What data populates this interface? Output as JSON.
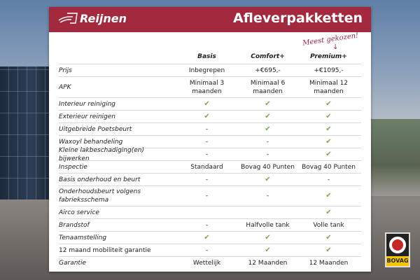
{
  "header": {
    "logo_text": "Reijnen",
    "title": "Afleverpakketten",
    "brand_color": "#a32a3e"
  },
  "note": "Meest gekozen!",
  "columns": [
    "Basis",
    "Comfort+",
    "Premium+"
  ],
  "rows": [
    {
      "label": "Prijs",
      "italic": true,
      "values": [
        "Inbegrepen",
        "+€695,-",
        "+€1095,-"
      ]
    },
    {
      "label": "APK",
      "italic": true,
      "values": [
        "Minimaal 3 maanden",
        "Minimaal 6 maanden",
        "Minimaal 12 maanden"
      ]
    },
    {
      "label": "Interieur reiniging",
      "values": [
        "check",
        "check",
        "check"
      ]
    },
    {
      "label": "Exterieur reinigen",
      "values": [
        "check",
        "check",
        "check"
      ]
    },
    {
      "label": "Uitgebreide Poetsbeurt",
      "values": [
        "-",
        "check",
        "check"
      ]
    },
    {
      "label": "Waxoyl behandeling",
      "values": [
        "-",
        "-",
        "check"
      ]
    },
    {
      "label": "Kleine lakbeschadiging(en) bijwerken",
      "values": [
        "-",
        "-",
        "check"
      ]
    },
    {
      "label": "Inspectie",
      "values": [
        "Standaard",
        "Bovag 40 Punten",
        "Bovag 40 Punten"
      ]
    },
    {
      "label": "Basis onderhoud en beurt",
      "values": [
        "-",
        "check",
        "-"
      ]
    },
    {
      "label": "Onderhoudsbeurt volgens fabrieksschema",
      "values": [
        "-",
        "-",
        "check"
      ]
    },
    {
      "label": "Airco service",
      "values": [
        "",
        "",
        "check"
      ]
    },
    {
      "label": "Brandstof",
      "values": [
        "-",
        "Halfvolle tank",
        "Volle tank"
      ]
    },
    {
      "label": "Tenaamstelling",
      "values": [
        "check",
        "check",
        "check"
      ]
    },
    {
      "label": "12 maand mobiliteit garantie",
      "upright": true,
      "values": [
        "-",
        "check",
        "check"
      ]
    },
    {
      "label": "Garantie",
      "values": [
        "Wettelijk",
        "12 Maanden",
        "12 Maanden"
      ]
    }
  ],
  "check_color": "#79a84a",
  "badge": {
    "text": "BOVAG"
  }
}
